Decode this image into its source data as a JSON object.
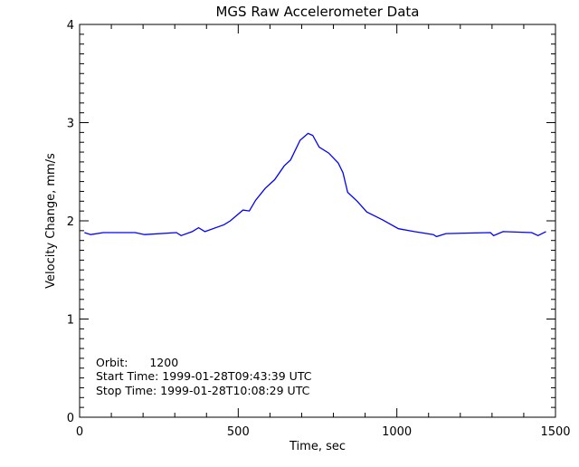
{
  "chart_data": {
    "type": "line",
    "title": "MGS Raw Accelerometer Data",
    "xlabel": "Time, sec",
    "ylabel": "Velocity Change, mm/s",
    "xlim": [
      0,
      1500
    ],
    "ylim": [
      0,
      4
    ],
    "xticks": [
      0,
      500,
      1000,
      1500
    ],
    "yticks": [
      0,
      1,
      2,
      3,
      4
    ],
    "grid": false,
    "line_color": "#0000ff",
    "series": [
      {
        "x": [
          15,
          35,
          75,
          175,
          205,
          305,
          320,
          355,
          375,
          395,
          455,
          475,
          515,
          535,
          555,
          585,
          615,
          645,
          665,
          695,
          720,
          735,
          755,
          785,
          815,
          830,
          845,
          875,
          905,
          955,
          1005,
          1055,
          1115,
          1125,
          1155,
          1295,
          1305,
          1335,
          1425,
          1445,
          1470
        ],
        "y": [
          1.88,
          1.86,
          1.88,
          1.88,
          1.86,
          1.88,
          1.85,
          1.89,
          1.93,
          1.89,
          1.96,
          2.0,
          2.11,
          2.1,
          2.21,
          2.33,
          2.42,
          2.56,
          2.62,
          2.82,
          2.89,
          2.87,
          2.75,
          2.69,
          2.59,
          2.49,
          2.29,
          2.2,
          2.09,
          2.01,
          1.92,
          1.89,
          1.86,
          1.84,
          1.87,
          1.88,
          1.85,
          1.89,
          1.88,
          1.85,
          1.89
        ]
      }
    ],
    "annotations": [
      "Orbit:      1200",
      "Start Time: 1999-01-28T09:43:39 UTC",
      "Stop Time: 1999-01-28T10:08:29 UTC"
    ]
  }
}
